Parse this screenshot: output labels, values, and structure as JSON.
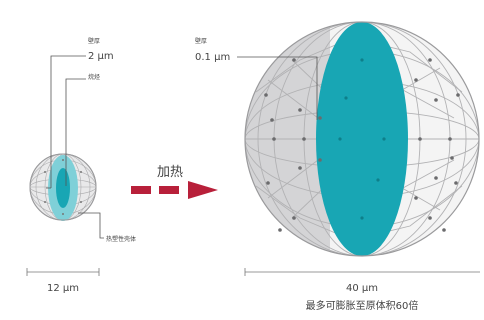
{
  "small_sphere": {
    "wall_label": "壁厚",
    "wall_value": "2 μm",
    "core_label": "烷烃",
    "shell_label": "热塑性壳体",
    "diameter": "12 μm"
  },
  "arrow_label": "加热",
  "large_sphere": {
    "wall_label": "壁厚",
    "wall_value": "0.1 μm",
    "diameter": "40 μm",
    "caption": "最多可膨胀至原体积60倍"
  },
  "colors": {
    "teal": "#18a6b4",
    "teal_light": "#7fd0d8",
    "shell_grey": "#d4d4d6",
    "arrow_red": "#b8203a",
    "line": "#888888"
  }
}
